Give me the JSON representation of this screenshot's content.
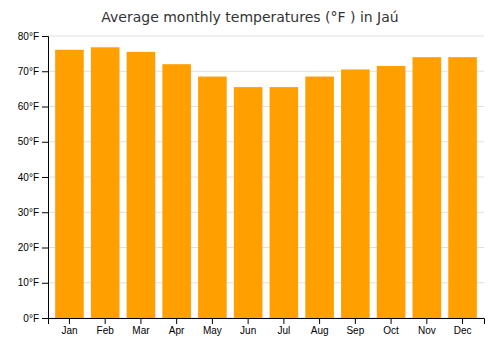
{
  "chart_data": {
    "type": "bar",
    "title": "Average monthly temperatures (°F ) in Jaú",
    "categories": [
      "Jan",
      "Feb",
      "Mar",
      "Apr",
      "May",
      "Jun",
      "Jul",
      "Aug",
      "Sep",
      "Oct",
      "Nov",
      "Dec"
    ],
    "values": [
      76.1,
      76.8,
      75.5,
      72.0,
      68.5,
      65.5,
      65.5,
      68.5,
      70.5,
      71.5,
      74.0,
      74.0
    ],
    "color": "#FFA000",
    "ylim": [
      0,
      80
    ],
    "yticks": [
      {
        "value": 0,
        "label": "0°F"
      },
      {
        "value": 10,
        "label": "10°F"
      },
      {
        "value": 20,
        "label": "20°F"
      },
      {
        "value": 30,
        "label": "30°F"
      },
      {
        "value": 40,
        "label": "40°F"
      },
      {
        "value": 50,
        "label": "50°F"
      },
      {
        "value": 60,
        "label": "60°F"
      },
      {
        "value": 70,
        "label": "70°F"
      },
      {
        "value": 80,
        "label": "80°F"
      }
    ],
    "grid": true
  }
}
